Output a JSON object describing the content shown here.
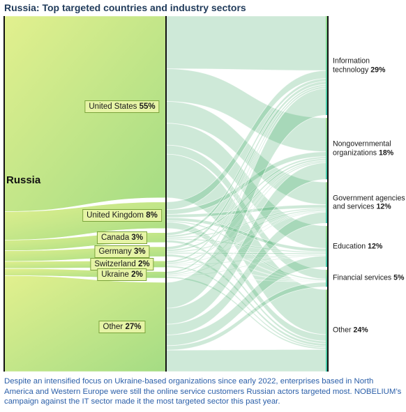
{
  "title": "Russia: Top targeted countries and industry sectors",
  "caption": "Despite an intensified focus on Ukraine-based organizations since early 2022, enterprises based in North America and Western Europe were still the online service customers Russian actors targeted most. NOBELIUM’s campaign against the IT sector made it the most targeted sector this past year.",
  "chart_data": {
    "type": "sankey",
    "title": "Russia: Top targeted countries and industry sectors",
    "source": "Russia",
    "countries": [
      {
        "name": "United States",
        "pct": "55%",
        "value": 55
      },
      {
        "name": "United Kingdom",
        "pct": "8%",
        "value": 8
      },
      {
        "name": "Canada",
        "pct": "3%",
        "value": 3
      },
      {
        "name": "Germany",
        "pct": "3%",
        "value": 3
      },
      {
        "name": "Switzerland",
        "pct": "2%",
        "value": 2
      },
      {
        "name": "Ukraine",
        "pct": "2%",
        "value": 2
      },
      {
        "name": "Other",
        "pct": "27%",
        "value": 27
      }
    ],
    "sectors": [
      {
        "name": "Information technology",
        "lines": [
          "Information",
          "technology"
        ],
        "pct": "29%",
        "value": 29
      },
      {
        "name": "Nongovernmental organizations",
        "lines": [
          "Nongovernmental",
          "organizations"
        ],
        "pct": "18%",
        "value": 18
      },
      {
        "name": "Government agencies and services",
        "lines": [
          "Government agencies",
          "and services"
        ],
        "pct": "12%",
        "value": 12
      },
      {
        "name": "Education",
        "lines": [
          "Education"
        ],
        "pct": "12%",
        "value": 12
      },
      {
        "name": "Financial services",
        "lines": [
          "Financial services"
        ],
        "pct": "5%",
        "value": 5
      },
      {
        "name": "Other",
        "lines": [
          "Other"
        ],
        "pct": "24%",
        "value": 24
      }
    ],
    "colors": {
      "source": "#dcec8a",
      "mid": "#8fd28a",
      "target": "#4ecfae",
      "link": "#1f9a4c",
      "bar": "#111111"
    }
  }
}
